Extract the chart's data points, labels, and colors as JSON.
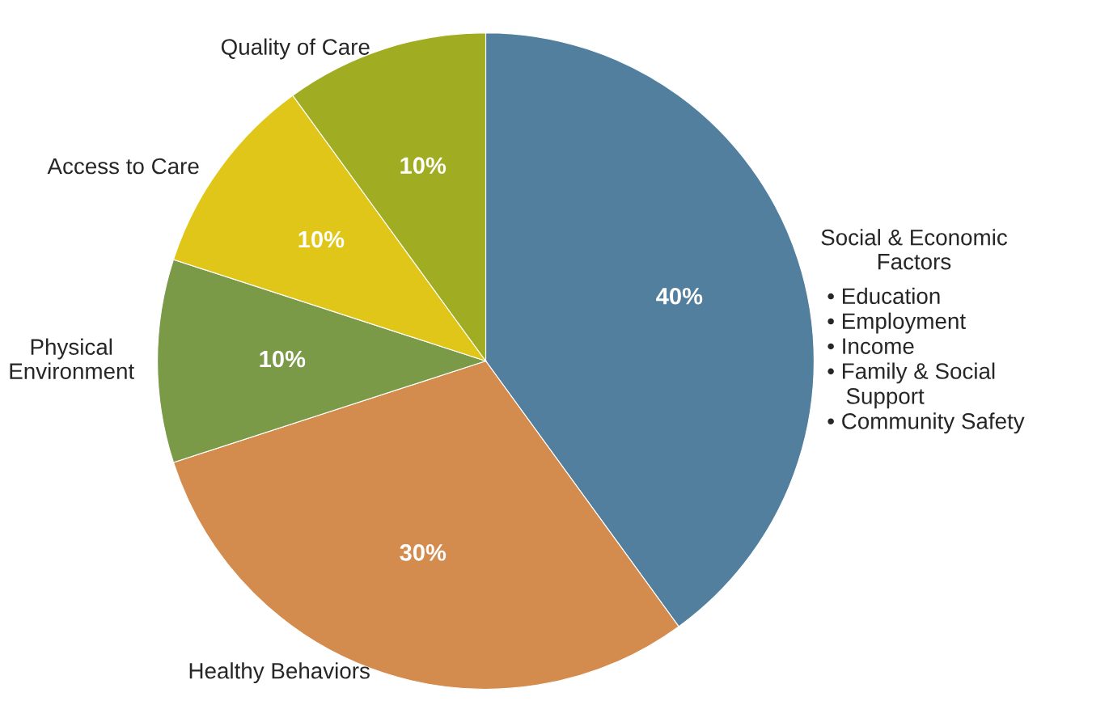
{
  "chart_data": {
    "type": "pie",
    "categories": [
      "Social & Economic\nFactors",
      "Healthy Behaviors",
      "Physical\nEnvironment",
      "Access to Care",
      "Quality of Care"
    ],
    "values": [
      40,
      30,
      10,
      10,
      10
    ],
    "value_labels": [
      "40%",
      "30%",
      "10%",
      "10%",
      "10%"
    ],
    "colors": [
      "#527f9e",
      "#d48b4e",
      "#7a9a48",
      "#e0c619",
      "#a0ad22"
    ],
    "annotations": [
      "• Education",
      "• Employment",
      "• Income",
      "• Family & Social\n   Support",
      "• Community Safety"
    ]
  }
}
